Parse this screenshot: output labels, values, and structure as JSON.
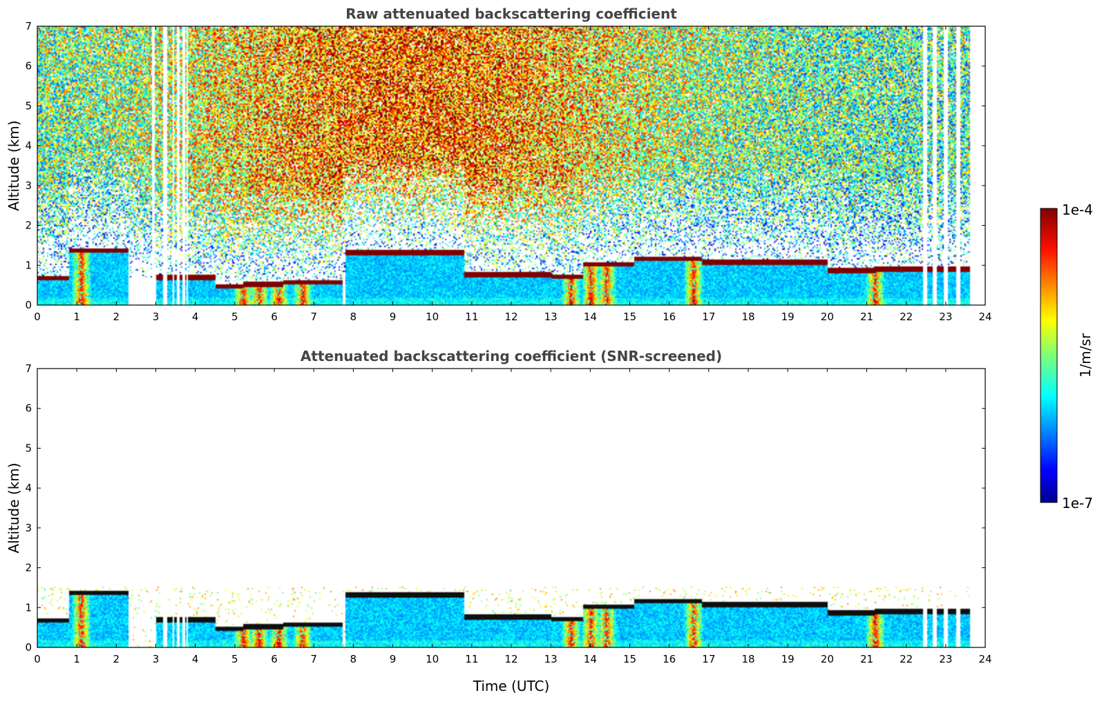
{
  "chart_data": [
    {
      "type": "heatmap",
      "title": "Raw attenuated backscattering coefficient",
      "xlabel": "",
      "ylabel": "Altitude (km)",
      "xlim": [
        0,
        24
      ],
      "ylim": [
        0,
        7
      ],
      "xticks": [
        0,
        1,
        2,
        3,
        4,
        5,
        6,
        7,
        8,
        9,
        10,
        11,
        12,
        13,
        14,
        15,
        16,
        17,
        18,
        19,
        20,
        21,
        22,
        23,
        24
      ],
      "yticks": [
        0,
        1,
        2,
        3,
        4,
        5,
        6,
        7
      ],
      "data_end_time": 23.6,
      "missing_data_intervals": [
        [
          2.88,
          2.94
        ],
        [
          3.15,
          3.28
        ],
        [
          3.4,
          3.45
        ],
        [
          3.53,
          3.58
        ],
        [
          3.66,
          3.71
        ],
        [
          3.76,
          3.8
        ],
        [
          22.4,
          22.5
        ],
        [
          22.65,
          22.75
        ],
        [
          22.95,
          23.05
        ],
        [
          23.25,
          23.35
        ]
      ],
      "cloud_layer_height_km": [
        {
          "start": 0.0,
          "end": 0.8,
          "height": 0.65
        },
        {
          "start": 0.8,
          "end": 2.3,
          "height": 1.35
        },
        {
          "start": 3.0,
          "end": 4.5,
          "height": 0.68
        },
        {
          "start": 4.5,
          "end": 5.2,
          "height": 0.45
        },
        {
          "start": 5.2,
          "end": 6.2,
          "height": 0.5
        },
        {
          "start": 6.2,
          "end": 7.7,
          "height": 0.55
        },
        {
          "start": 7.8,
          "end": 10.8,
          "height": 1.3
        },
        {
          "start": 10.8,
          "end": 13.0,
          "height": 0.75
        },
        {
          "start": 13.0,
          "end": 13.8,
          "height": 0.7
        },
        {
          "start": 13.8,
          "end": 15.1,
          "height": 1.0
        },
        {
          "start": 15.1,
          "end": 16.8,
          "height": 1.15
        },
        {
          "start": 16.8,
          "end": 20.0,
          "height": 1.05
        },
        {
          "start": 20.0,
          "end": 21.2,
          "height": 0.85
        },
        {
          "start": 21.2,
          "end": 23.6,
          "height": 0.88
        }
      ],
      "precipitation_bursts_time": [
        1.1,
        5.2,
        5.6,
        6.1,
        6.7,
        13.5,
        14.0,
        14.4,
        16.6,
        21.2
      ]
    },
    {
      "type": "heatmap",
      "title": "Attenuated backscattering coefficient (SNR-screened)",
      "xlabel": "Time (UTC)",
      "ylabel": "Altitude (km)",
      "xlim": [
        0,
        24
      ],
      "ylim": [
        0,
        7
      ],
      "xticks": [
        0,
        1,
        2,
        3,
        4,
        5,
        6,
        7,
        8,
        9,
        10,
        11,
        12,
        13,
        14,
        15,
        16,
        17,
        18,
        19,
        20,
        21,
        22,
        23,
        24
      ],
      "yticks": [
        0,
        1,
        2,
        3,
        4,
        5,
        6,
        7
      ],
      "data_end_time": 23.6,
      "screened_above_km": 1.5
    }
  ],
  "colorbar": {
    "label": "1/m/sr",
    "max_label": "1e-4",
    "min_label": "1e-7",
    "colormap": "jet",
    "scale": "log",
    "range": [
      1e-07,
      0.0001
    ]
  },
  "colors": {
    "axis": "#000000",
    "title_text": "#444444",
    "cloud_core": "#8b0000",
    "cloud_core_screened": "#111111"
  }
}
